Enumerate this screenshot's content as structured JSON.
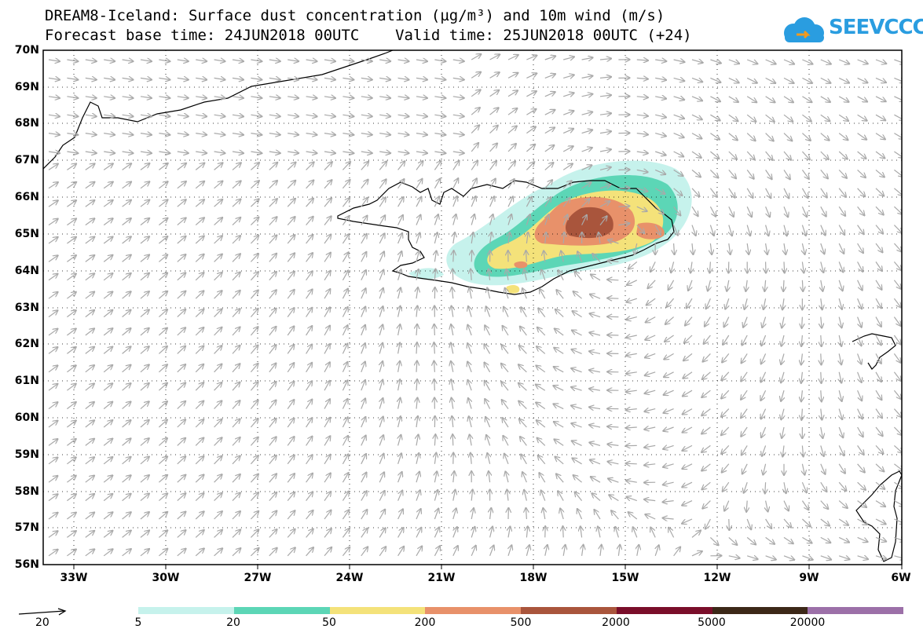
{
  "title_line1": "DREAM8-Iceland: Surface dust concentration (µg/m³) and 10m wind (m/s)",
  "title_line2": "Forecast base time: 24JUN2018 00UTC    Valid time: 25JUN2018 00UTC (+24)",
  "logo_text": "SEEVCCC",
  "logo_icon": "cloud-icon",
  "map": {
    "lat_labels": [
      "70N",
      "69N",
      "68N",
      "67N",
      "66N",
      "65N",
      "64N",
      "63N",
      "62N",
      "61N",
      "60N",
      "59N",
      "58N",
      "57N",
      "56N"
    ],
    "lon_labels": [
      "33W",
      "30W",
      "27W",
      "24W",
      "21W",
      "18W",
      "15W",
      "12W",
      "9W",
      "6W"
    ],
    "lat_range": [
      56,
      70
    ],
    "lon_range": [
      -34,
      -6
    ],
    "grid": "dotted",
    "wind_arrow_color": "#a9a9a9",
    "coastline_color": "#000000"
  },
  "wind_reference": {
    "label": "20"
  },
  "colorbar": {
    "colors": [
      "#c6f2ec",
      "#5cd6b6",
      "#f4e27a",
      "#e8916a",
      "#a9553c",
      "#7a0e2a",
      "#3c2818",
      "#9c70a8"
    ],
    "labels": [
      "5",
      "20",
      "50",
      "200",
      "500",
      "2000",
      "5000",
      "20000"
    ]
  }
}
